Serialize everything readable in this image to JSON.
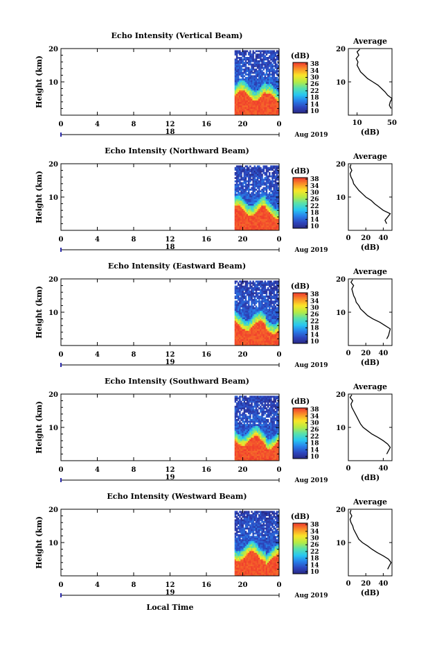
{
  "figure": {
    "xlabel": "Local Time",
    "month_label": "Aug 2019"
  },
  "chart_data": [
    {
      "type": "heatmap",
      "title": "Echo Intensity (Vertical Beam)",
      "ylabel": "Height (km)",
      "x_tick_labels": [
        "0",
        "4",
        "8",
        "12",
        "16",
        "20",
        "0"
      ],
      "day_label": "18",
      "y_tick_labels": [
        "10",
        "20"
      ],
      "ylim": [
        0,
        20
      ],
      "xlim": [
        0,
        24
      ],
      "data_start_hour": 19.1,
      "colorbar": {
        "unit": "(dB)",
        "ticks": [
          "10",
          "14",
          "18",
          "22",
          "26",
          "30",
          "34",
          "38"
        ],
        "range": [
          10,
          38
        ]
      },
      "profile": {
        "title": "Average",
        "xlabel": "(dB)",
        "xlim": [
          0,
          50
        ],
        "x_tick_labels": [
          "10",
          "50"
        ],
        "points": [
          [
            49,
            2
          ],
          [
            47,
            3
          ],
          [
            48,
            4
          ],
          [
            50,
            5
          ],
          [
            45,
            6
          ],
          [
            42,
            7
          ],
          [
            38,
            8
          ],
          [
            34,
            9
          ],
          [
            28,
            10
          ],
          [
            22,
            11
          ],
          [
            18,
            12
          ],
          [
            14,
            13
          ],
          [
            12,
            14
          ],
          [
            10,
            15
          ],
          [
            11,
            16
          ],
          [
            9,
            17
          ],
          [
            12,
            18
          ],
          [
            10,
            19
          ],
          [
            13,
            19.8
          ]
        ]
      }
    },
    {
      "type": "heatmap",
      "title": "Echo Intensity (Northward Beam)",
      "ylabel": "Height (km)",
      "x_tick_labels": [
        "0",
        "4",
        "8",
        "12",
        "16",
        "20",
        "0"
      ],
      "day_label": "18",
      "y_tick_labels": [
        "10",
        "20"
      ],
      "ylim": [
        0,
        20
      ],
      "xlim": [
        0,
        24
      ],
      "data_start_hour": 19.1,
      "colorbar": {
        "unit": "(dB)",
        "ticks": [
          "10",
          "14",
          "18",
          "22",
          "26",
          "30",
          "34",
          "38"
        ],
        "range": [
          10,
          38
        ]
      },
      "profile": {
        "title": "Average",
        "xlabel": "(dB)",
        "xlim": [
          0,
          50
        ],
        "x_tick_labels": [
          "0",
          "20",
          "40"
        ],
        "points": [
          [
            44,
            2
          ],
          [
            42,
            3
          ],
          [
            45,
            4
          ],
          [
            48,
            5
          ],
          [
            40,
            6
          ],
          [
            35,
            7
          ],
          [
            30,
            8
          ],
          [
            26,
            9
          ],
          [
            20,
            10
          ],
          [
            16,
            11
          ],
          [
            12,
            12
          ],
          [
            9,
            13
          ],
          [
            6,
            14
          ],
          [
            5,
            15
          ],
          [
            3,
            16
          ],
          [
            2,
            17
          ],
          [
            4,
            18
          ],
          [
            2,
            19
          ],
          [
            3,
            19.8
          ]
        ]
      }
    },
    {
      "type": "heatmap",
      "title": "Echo Intensity (Eastward Beam)",
      "ylabel": "Height (km)",
      "x_tick_labels": [
        "0",
        "4",
        "8",
        "12",
        "16",
        "20",
        "0"
      ],
      "day_label": "19",
      "y_tick_labels": [
        "10",
        "20"
      ],
      "ylim": [
        0,
        20
      ],
      "xlim": [
        0,
        24
      ],
      "data_start_hour": 19.1,
      "colorbar": {
        "unit": "(dB)",
        "ticks": [
          "10",
          "14",
          "18",
          "22",
          "26",
          "30",
          "34",
          "38"
        ],
        "range": [
          10,
          38
        ]
      },
      "profile": {
        "title": "Average",
        "xlabel": "(dB)",
        "xlim": [
          0,
          50
        ],
        "x_tick_labels": [
          "0",
          "20",
          "40"
        ],
        "points": [
          [
            44,
            2
          ],
          [
            46,
            3
          ],
          [
            47,
            4
          ],
          [
            48,
            5
          ],
          [
            42,
            6
          ],
          [
            36,
            7
          ],
          [
            28,
            8
          ],
          [
            22,
            9
          ],
          [
            18,
            10
          ],
          [
            14,
            11
          ],
          [
            12,
            12
          ],
          [
            9,
            13
          ],
          [
            8,
            14
          ],
          [
            6,
            15
          ],
          [
            5,
            16
          ],
          [
            4,
            17
          ],
          [
            6,
            18
          ],
          [
            3,
            19
          ],
          [
            5,
            19.8
          ]
        ]
      }
    },
    {
      "type": "heatmap",
      "title": "Echo Intensity (Southward Beam)",
      "ylabel": "Height (km)",
      "x_tick_labels": [
        "0",
        "4",
        "8",
        "12",
        "16",
        "20",
        "0"
      ],
      "day_label": "19",
      "y_tick_labels": [
        "10",
        "20"
      ],
      "ylim": [
        0,
        20
      ],
      "xlim": [
        0,
        24
      ],
      "data_start_hour": 19.1,
      "colorbar": {
        "unit": "(dB)",
        "ticks": [
          "10",
          "14",
          "18",
          "22",
          "26",
          "30",
          "34",
          "38"
        ],
        "range": [
          10,
          38
        ]
      },
      "profile": {
        "title": "Average",
        "xlabel": "(dB)",
        "xlim": [
          0,
          50
        ],
        "x_tick_labels": [
          "0",
          "40"
        ],
        "points": [
          [
            44,
            2
          ],
          [
            46,
            3
          ],
          [
            48,
            4
          ],
          [
            45,
            5
          ],
          [
            40,
            6
          ],
          [
            34,
            7
          ],
          [
            27,
            8
          ],
          [
            22,
            9
          ],
          [
            17,
            10
          ],
          [
            14,
            11
          ],
          [
            12,
            12
          ],
          [
            10,
            13
          ],
          [
            8,
            14
          ],
          [
            6,
            15
          ],
          [
            4,
            16
          ],
          [
            3,
            17
          ],
          [
            5,
            18
          ],
          [
            2,
            19
          ],
          [
            4,
            19.8
          ]
        ]
      }
    },
    {
      "type": "heatmap",
      "title": "Echo Intensity (Westward Beam)",
      "ylabel": "Height (km)",
      "x_tick_labels": [
        "0",
        "4",
        "8",
        "12",
        "16",
        "20",
        "0"
      ],
      "day_label": "19",
      "y_tick_labels": [
        "10",
        "20"
      ],
      "ylim": [
        0,
        20
      ],
      "xlim": [
        0,
        24
      ],
      "data_start_hour": 19.1,
      "colorbar": {
        "unit": "(dB)",
        "ticks": [
          "10",
          "14",
          "18",
          "22",
          "26",
          "30",
          "34",
          "38"
        ],
        "range": [
          10,
          38
        ]
      },
      "profile": {
        "title": "Average",
        "xlabel": "(dB)",
        "xlim": [
          0,
          50
        ],
        "x_tick_labels": [
          "0",
          "20",
          "40"
        ],
        "points": [
          [
            45,
            2
          ],
          [
            47,
            3
          ],
          [
            49,
            4
          ],
          [
            46,
            5
          ],
          [
            40,
            6
          ],
          [
            33,
            7
          ],
          [
            27,
            8
          ],
          [
            22,
            9
          ],
          [
            16,
            10
          ],
          [
            12,
            11
          ],
          [
            10,
            12
          ],
          [
            8,
            13
          ],
          [
            6,
            14
          ],
          [
            5,
            15
          ],
          [
            3,
            16
          ],
          [
            2,
            17
          ],
          [
            4,
            18
          ],
          [
            2,
            19
          ],
          [
            3,
            19.8
          ]
        ]
      }
    }
  ]
}
